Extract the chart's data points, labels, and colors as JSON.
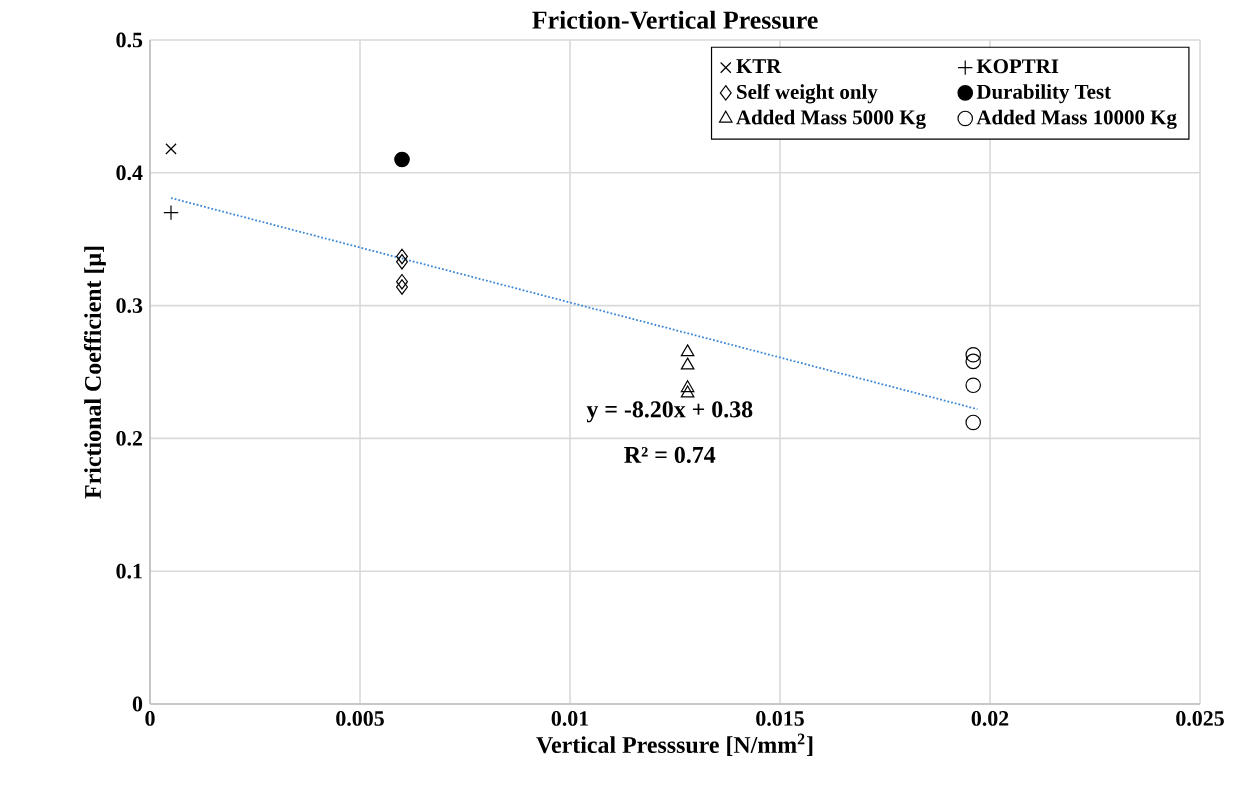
{
  "chart_data": {
    "type": "scatter",
    "title": "Friction-Vertical Pressure",
    "xlabel": "Vertical Presssure [N/mm$^{2}$]",
    "ylabel": "Frictional Coefficient [μ]",
    "xlim": [
      0,
      0.025
    ],
    "xticks": [
      0,
      0.005,
      0.01,
      0.015,
      0.02,
      0.025
    ],
    "ylim": [
      0,
      0.5
    ],
    "yticks": [
      0,
      0.1,
      0.2,
      0.3,
      0.4,
      0.5
    ],
    "grid": true,
    "legend": "top right",
    "series": [
      {
        "name": "KTR",
        "color": "#000000",
        "marker": "cross",
        "x": [
          0.0005
        ],
        "values": [
          0.418
        ]
      },
      {
        "name": "KOPTRI",
        "color": "#000000",
        "marker": "plus",
        "x": [
          0.0005
        ],
        "values": [
          0.37
        ]
      },
      {
        "name": "Self weight only",
        "color": "#000000",
        "marker": "diamond",
        "x": [
          0.006,
          0.006,
          0.006,
          0.006
        ],
        "values": [
          0.337,
          0.333,
          0.318,
          0.314
        ]
      },
      {
        "name": "Durability Test",
        "color": "#000000",
        "marker": "circle",
        "x": [
          0.006
        ],
        "values": [
          0.41
        ]
      },
      {
        "name": "Added Mass 5000 Kg",
        "color": "#000000",
        "marker": "triangle",
        "x": [
          0.0128,
          0.0128,
          0.0128,
          0.0128
        ],
        "values": [
          0.265,
          0.255,
          0.238,
          0.234
        ]
      },
      {
        "name": "Added Mass 10000 Kg",
        "color": "#000000",
        "marker": "circle_open",
        "x": [
          0.0196,
          0.0196,
          0.0196,
          0.0196
        ],
        "values": [
          0.263,
          0.258,
          0.24,
          0.212
        ]
      },
      {
        "type": "line",
        "color": "#3a86d6",
        "line_style": "dotted",
        "marker": "none",
        "x": [
          0.0005,
          0.0197
        ],
        "values": [
          0.381,
          0.222
        ]
      }
    ],
    "annotations": [
      "y = -8.20x + 0.38",
      "R² = 0.74"
    ]
  }
}
